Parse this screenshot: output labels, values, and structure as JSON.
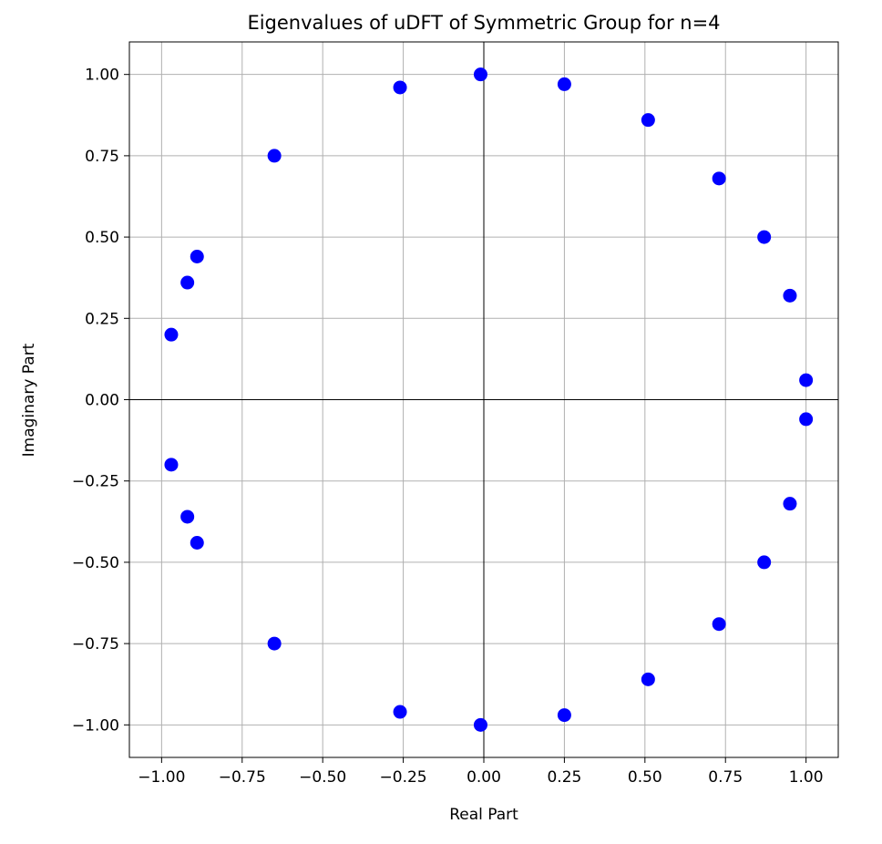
{
  "chart_data": {
    "type": "scatter",
    "title": "Eigenvalues of uDFT of Symmetric Group for n=4",
    "xlabel": "Real Part",
    "ylabel": "Imaginary Part",
    "xlim": [
      -1.1,
      1.1
    ],
    "ylim": [
      -1.1,
      1.1
    ],
    "grid": true,
    "zero_lines": true,
    "marker_color": "#0000ff",
    "x_ticks": [
      -1.0,
      -0.75,
      -0.5,
      -0.25,
      0.0,
      0.25,
      0.5,
      0.75,
      1.0
    ],
    "y_ticks": [
      -1.0,
      -0.75,
      -0.5,
      -0.25,
      0.0,
      0.25,
      0.5,
      0.75,
      1.0
    ],
    "x_tick_labels": [
      "−1.00",
      "−0.75",
      "−0.50",
      "−0.25",
      "0.00",
      "0.25",
      "0.50",
      "0.75",
      "1.00"
    ],
    "y_tick_labels": [
      "−1.00",
      "−0.75",
      "−0.50",
      "−0.25",
      "0.00",
      "0.25",
      "0.50",
      "0.75",
      "1.00"
    ],
    "points": [
      {
        "x": -0.01,
        "y": 1.0
      },
      {
        "x": -0.01,
        "y": -1.0
      },
      {
        "x": 0.25,
        "y": 0.97
      },
      {
        "x": 0.25,
        "y": -0.97
      },
      {
        "x": 0.51,
        "y": 0.86
      },
      {
        "x": 0.51,
        "y": -0.86
      },
      {
        "x": 0.73,
        "y": 0.68
      },
      {
        "x": 0.73,
        "y": -0.69
      },
      {
        "x": 0.87,
        "y": 0.5
      },
      {
        "x": 0.87,
        "y": -0.5
      },
      {
        "x": 0.95,
        "y": 0.32
      },
      {
        "x": 0.95,
        "y": -0.32
      },
      {
        "x": 1.0,
        "y": 0.06
      },
      {
        "x": 1.0,
        "y": -0.06
      },
      {
        "x": -0.26,
        "y": 0.96
      },
      {
        "x": -0.26,
        "y": -0.96
      },
      {
        "x": -0.65,
        "y": 0.75
      },
      {
        "x": -0.65,
        "y": -0.75
      },
      {
        "x": -0.89,
        "y": 0.44
      },
      {
        "x": -0.89,
        "y": -0.44
      },
      {
        "x": -0.92,
        "y": 0.36
      },
      {
        "x": -0.92,
        "y": -0.36
      },
      {
        "x": -0.97,
        "y": 0.2
      },
      {
        "x": -0.97,
        "y": -0.2
      }
    ]
  }
}
